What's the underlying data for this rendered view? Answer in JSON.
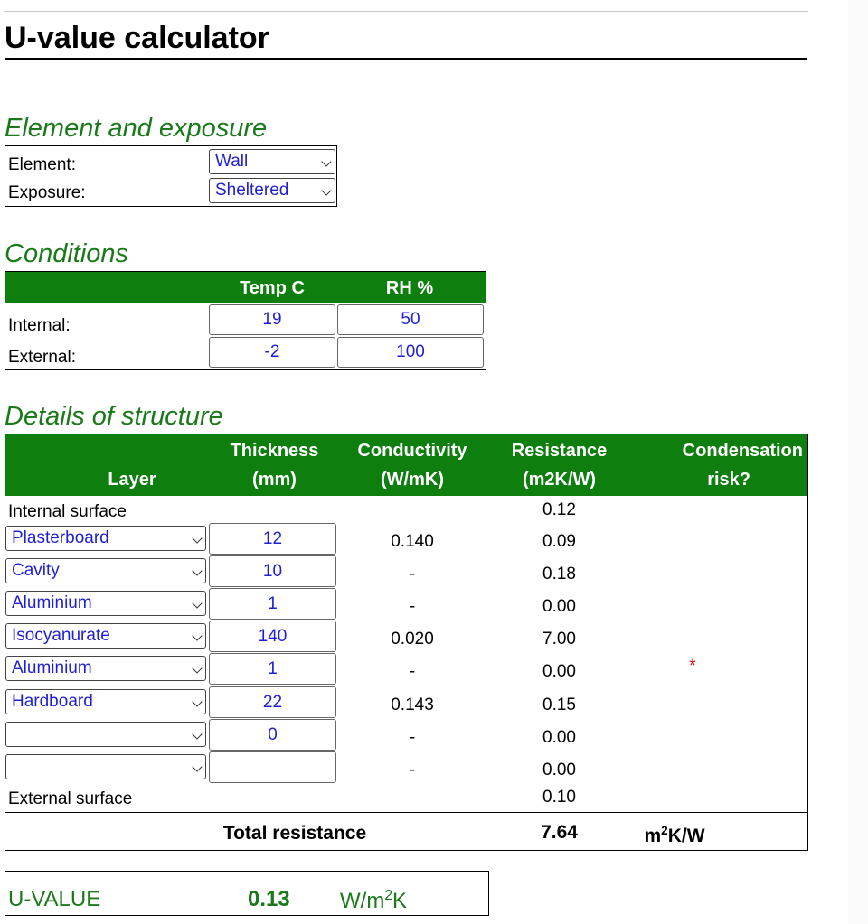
{
  "page": {
    "title": "U-value calculator"
  },
  "element_exposure": {
    "heading": "Element and exposure",
    "element_label": "Element:",
    "element_value": "Wall",
    "exposure_label": "Exposure:",
    "exposure_value": "Sheltered"
  },
  "conditions": {
    "heading": "Conditions",
    "col_temp": "Temp C",
    "col_rh": "RH %",
    "internal_label": "Internal:",
    "internal_temp": "19",
    "internal_rh": "50",
    "external_label": "External:",
    "external_temp": "-2",
    "external_rh": "100"
  },
  "structure": {
    "heading": "Details of structure",
    "headers": {
      "layer": "Layer",
      "thickness_1": "Thickness",
      "thickness_2": "(mm)",
      "conductivity_1": "Conductivity",
      "conductivity_2": "(W/mK)",
      "resistance_1": "Resistance",
      "resistance_2": "(m2K/W)",
      "condensation_1": "Condensation",
      "condensation_2": "risk?"
    },
    "internal_surface_label": "Internal surface",
    "internal_surface_resistance": "0.12",
    "layers": [
      {
        "material": "Plasterboard",
        "thickness": "12",
        "conductivity": "0.140",
        "resistance": "0.09",
        "risk": ""
      },
      {
        "material": "Cavity",
        "thickness": "10",
        "conductivity": "-",
        "resistance": "0.18",
        "risk": ""
      },
      {
        "material": "Aluminium",
        "thickness": "1",
        "conductivity": "-",
        "resistance": "0.00",
        "risk": ""
      },
      {
        "material": "Isocyanurate",
        "thickness": "140",
        "conductivity": "0.020",
        "resistance": "7.00",
        "risk": ""
      },
      {
        "material": "Aluminium",
        "thickness": "1",
        "conductivity": "-",
        "resistance": "0.00",
        "risk": "*"
      },
      {
        "material": "Hardboard",
        "thickness": "22",
        "conductivity": "0.143",
        "resistance": "0.15",
        "risk": ""
      },
      {
        "material": "",
        "thickness": "0",
        "conductivity": "-",
        "resistance": "0.00",
        "risk": ""
      },
      {
        "material": "",
        "thickness": "",
        "conductivity": "-",
        "resistance": "0.00",
        "risk": ""
      }
    ],
    "external_surface_label": "External surface",
    "external_surface_resistance": "0.10",
    "total_label": "Total resistance",
    "total_value": "7.64",
    "total_unit_prefix": "m",
    "total_unit_sup": "2",
    "total_unit_suffix": "K/W"
  },
  "result": {
    "label": "U-VALUE",
    "value": "0.13",
    "unit_prefix": "W/m",
    "unit_sup": "2",
    "unit_suffix": "K"
  },
  "colors": {
    "green": "#0e7f0e",
    "link_blue": "#1f1fd6",
    "risk_red": "#e00000"
  }
}
